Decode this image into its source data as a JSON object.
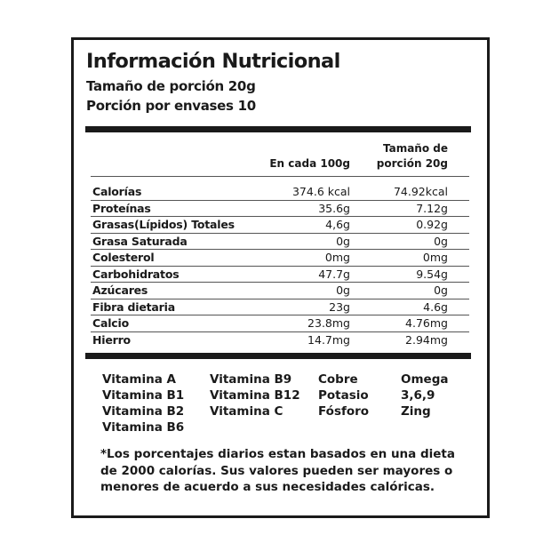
{
  "title": "Información Nutricional",
  "serving_size": "Tamaño de porción  20g",
  "servings_per_container": "Porción por envases 10",
  "columns": {
    "per100": "En cada 100g",
    "serving_line1": "Tamaño de",
    "serving_line2": "porción 20g"
  },
  "rows": [
    {
      "name": "Calorías",
      "per100": "374.6 kcal",
      "serving": "74.92kcal"
    },
    {
      "name": "Proteínas",
      "per100": "35.6g",
      "serving": "7.12g"
    },
    {
      "name": "Grasas(Lípidos) Totales",
      "per100": "4,6g",
      "serving": "0.92g"
    },
    {
      "name": "Grasa Saturada",
      "per100": "0g",
      "serving": "0g"
    },
    {
      "name": "Colesterol",
      "per100": "0mg",
      "serving": "0mg"
    },
    {
      "name": "Carbohidratos",
      "per100": "47.7g",
      "serving": "9.54g"
    },
    {
      "name": "Azúcares",
      "per100": "0g",
      "serving": "0g"
    },
    {
      "name": "Fibra dietaria",
      "per100": "23g",
      "serving": "4.6g"
    },
    {
      "name": "Calcio",
      "per100": "23.8mg",
      "serving": "4.76mg"
    },
    {
      "name": "Hierro",
      "per100": "14.7mg",
      "serving": "2.94mg"
    }
  ],
  "micronutrients": [
    [
      "Vitamina A",
      "Vitamina B1",
      "Vitamina B2",
      "Vitamina B6"
    ],
    [
      "Vitamina B9",
      "Vitamina B12",
      "Vitamina C"
    ],
    [
      "Cobre",
      "Potasio",
      "Fósforo"
    ],
    [
      "Omega",
      "3,6,9",
      "Zing"
    ]
  ],
  "footnote": "*Los porcentajes diarios estan basados en una dieta de 2000 calorías. Sus valores pueden ser mayores o menores de acuerdo a sus necesidades calóricas."
}
